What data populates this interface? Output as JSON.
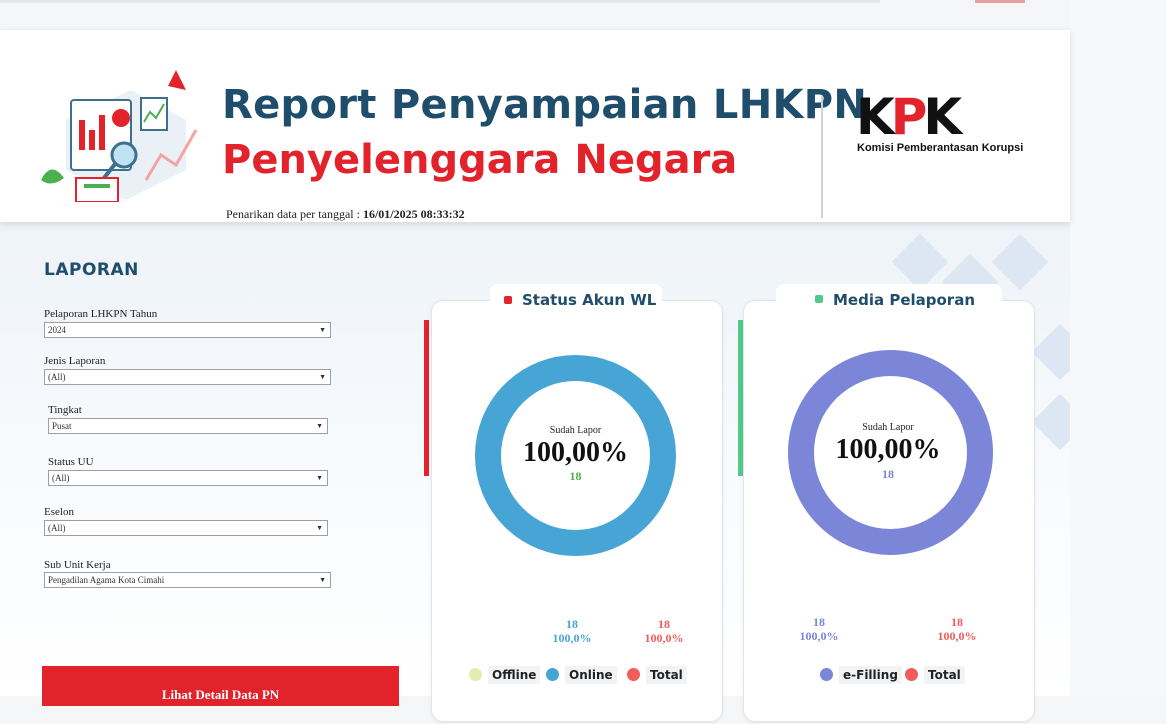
{
  "header": {
    "title_line1": "Report Penyampaian LHKPN",
    "title_line2": "Penyelenggara Negara",
    "pull_label": "Penarikan data per tanggal :",
    "pull_value": "16/01/2025 08:33:32",
    "logo_text": "KPK",
    "logo_subtitle": "Komisi Pemberantasan Korupsi"
  },
  "sidebar": {
    "title": "LAPORAN",
    "filters": [
      {
        "label": "Pelaporan LHKPN Tahun",
        "value": "2024"
      },
      {
        "label": "Jenis Laporan",
        "value": "(All)"
      },
      {
        "label": "Tingkat",
        "value": "Pusat"
      },
      {
        "label": "Status UU",
        "value": "(All)"
      },
      {
        "label": "Eselon",
        "value": "(All)"
      },
      {
        "label": "Sub Unit Kerja",
        "value": "Pengadilan Agama Kota Cimahi"
      }
    ],
    "detail_button": "Lihat Detail Data PN"
  },
  "colors": {
    "navy": "#1f4e6d",
    "red": "#e3232b",
    "online_blue": "#47a5d6",
    "efiling_purple": "#7b86d8",
    "total_red": "#f25c5c",
    "offline_green": "#e3edb0",
    "media_accent": "#52c98a"
  },
  "cards": {
    "status": {
      "title": "Status Akun WL",
      "center_label": "Sudah Lapor",
      "center_percent": "100,00%",
      "center_count": "18",
      "stat_online_count": "18",
      "stat_online_pct": "100,0%",
      "stat_total_count": "18",
      "stat_total_pct": "100,0%",
      "legend": [
        "Offline",
        "Online",
        "Total"
      ]
    },
    "media": {
      "title": "Media Pelaporan",
      "center_label": "Sudah Lapor",
      "center_percent": "100,00%",
      "center_count": "18",
      "stat_efiling_count": "18",
      "stat_efiling_pct": "100,0%",
      "stat_total_count": "18",
      "stat_total_pct": "100,0%",
      "legend": [
        "e-Filling",
        "Total"
      ]
    }
  }
}
